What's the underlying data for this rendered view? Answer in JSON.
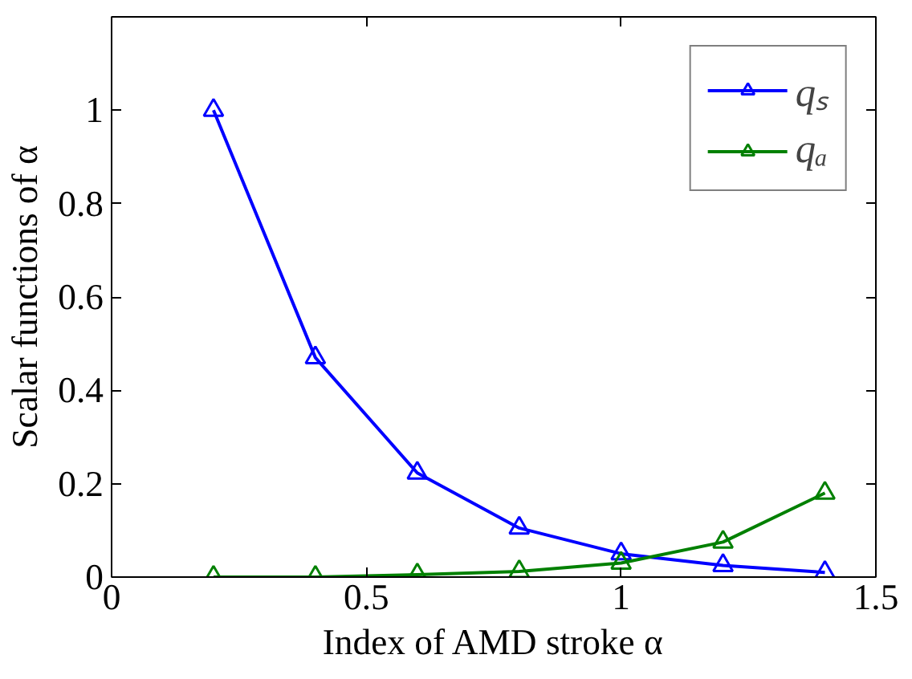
{
  "chart_data": {
    "type": "line",
    "xlabel": "Index of AMD stroke α",
    "ylabel": "Scalar functions of α",
    "x": [
      0.2,
      0.4,
      0.6,
      0.8,
      1.0,
      1.2,
      1.4
    ],
    "series": [
      {
        "name": "qₛ",
        "color": "#0000ff",
        "marker": "triangle",
        "values": [
          1.0,
          0.47,
          0.223,
          0.105,
          0.05,
          0.025,
          0.01
        ]
      },
      {
        "name": "qₐ",
        "color": "#008000",
        "marker": "triangle",
        "values": [
          0.0,
          0.0,
          0.005,
          0.012,
          0.03,
          0.075,
          0.18
        ]
      }
    ],
    "xlim": [
      0,
      1.5
    ],
    "xticks": [
      0,
      0.5,
      1,
      1.5
    ],
    "ylim": [
      0,
      1.2
    ],
    "yticks": [
      0,
      0.2,
      0.4,
      0.6,
      0.8,
      1
    ],
    "grid": false,
    "legend": "top right",
    "line_style": "solid"
  }
}
